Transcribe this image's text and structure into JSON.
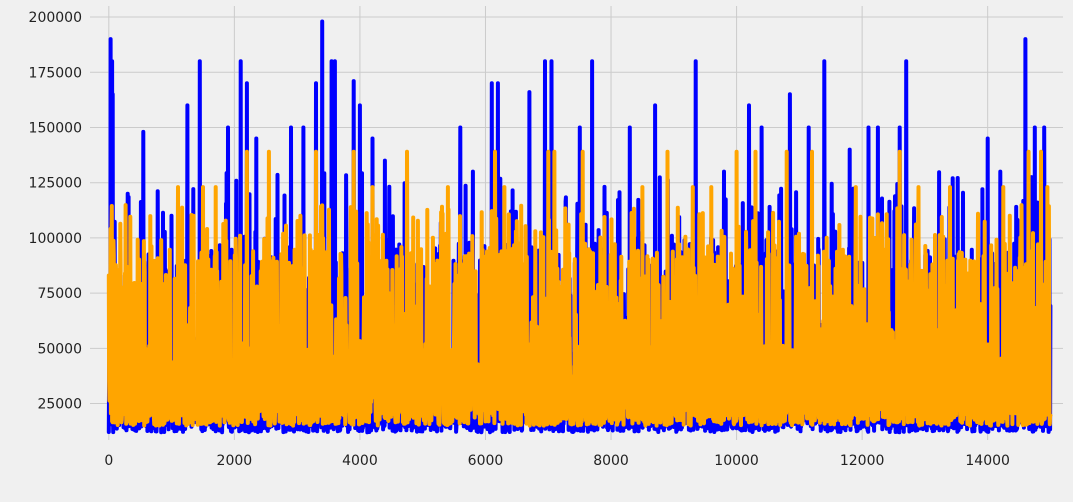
{
  "chart_data": {
    "type": "line",
    "title": "",
    "xlabel": "",
    "ylabel": "",
    "xlim": [
      -300,
      15200
    ],
    "ylim": [
      8500,
      205000
    ],
    "x_ticks": [
      0,
      2000,
      4000,
      6000,
      8000,
      10000,
      12000,
      14000
    ],
    "x_tick_labels": [
      "0",
      "2000",
      "4000",
      "6000",
      "8000",
      "10000",
      "12000",
      "14000"
    ],
    "y_ticks": [
      25000,
      50000,
      75000,
      100000,
      125000,
      150000,
      175000,
      200000
    ],
    "y_tick_labels": [
      "25000",
      "50000",
      "75000",
      "100000",
      "125000",
      "150000",
      "175000",
      "200000"
    ],
    "grid": true,
    "legend": "none",
    "background": "#f0f0f0",
    "grid_color": "#cbcbcb",
    "series": [
      {
        "color": "#0000ff",
        "n_points": 15000,
        "x_range": [
          0,
          14999
        ],
        "y_min": 12000,
        "y_max": 198000,
        "peaks": [
          [
            30,
            190000
          ],
          [
            50,
            180000
          ],
          [
            60,
            165000
          ],
          [
            300,
            120000
          ],
          [
            550,
            148000
          ],
          [
            1000,
            110000
          ],
          [
            1250,
            160000
          ],
          [
            1450,
            180000
          ],
          [
            1900,
            150000
          ],
          [
            2100,
            180000
          ],
          [
            2200,
            170000
          ],
          [
            2350,
            145000
          ],
          [
            2900,
            150000
          ],
          [
            3100,
            150000
          ],
          [
            3300,
            170000
          ],
          [
            3400,
            198000
          ],
          [
            3550,
            180000
          ],
          [
            3600,
            180000
          ],
          [
            3900,
            171000
          ],
          [
            4000,
            160000
          ],
          [
            4200,
            145000
          ],
          [
            4400,
            135000
          ],
          [
            5600,
            150000
          ],
          [
            5800,
            130000
          ],
          [
            6100,
            170000
          ],
          [
            6200,
            170000
          ],
          [
            6700,
            166000
          ],
          [
            6950,
            180000
          ],
          [
            7050,
            180000
          ],
          [
            7500,
            150000
          ],
          [
            7700,
            180000
          ],
          [
            8300,
            150000
          ],
          [
            8700,
            160000
          ],
          [
            9350,
            180000
          ],
          [
            9800,
            130000
          ],
          [
            10200,
            160000
          ],
          [
            10400,
            150000
          ],
          [
            10850,
            165000
          ],
          [
            11150,
            150000
          ],
          [
            11400,
            180000
          ],
          [
            11800,
            140000
          ],
          [
            12100,
            150000
          ],
          [
            12250,
            150000
          ],
          [
            12600,
            150000
          ],
          [
            12700,
            180000
          ],
          [
            14000,
            145000
          ],
          [
            14200,
            130000
          ],
          [
            14600,
            190000
          ],
          [
            14750,
            150000
          ],
          [
            14900,
            150000
          ]
        ]
      },
      {
        "color": "#ffa500",
        "n_points": 15000,
        "x_range": [
          0,
          14999
        ],
        "y_min": 15000,
        "y_max": 139000,
        "peaks": [
          [
            0,
            83000
          ],
          [
            40,
            101000
          ],
          [
            80,
            92000
          ],
          [
            500,
            71000
          ],
          [
            1100,
            123000
          ],
          [
            1350,
            110000
          ],
          [
            1500,
            123000
          ],
          [
            1700,
            123000
          ],
          [
            2200,
            139000
          ],
          [
            2550,
            139000
          ],
          [
            3050,
            110000
          ],
          [
            3300,
            139000
          ],
          [
            3900,
            139000
          ],
          [
            4200,
            123000
          ],
          [
            4750,
            139000
          ],
          [
            5400,
            123000
          ],
          [
            6150,
            139000
          ],
          [
            6300,
            123000
          ],
          [
            7000,
            139000
          ],
          [
            7100,
            139000
          ],
          [
            7550,
            139000
          ],
          [
            8500,
            123000
          ],
          [
            8900,
            139000
          ],
          [
            9300,
            123000
          ],
          [
            9600,
            123000
          ],
          [
            10000,
            139000
          ],
          [
            10300,
            139000
          ],
          [
            10800,
            139000
          ],
          [
            11200,
            139000
          ],
          [
            11900,
            123000
          ],
          [
            12600,
            139000
          ],
          [
            12900,
            123000
          ],
          [
            13400,
            123000
          ],
          [
            14250,
            123000
          ],
          [
            14350,
            110000
          ],
          [
            14650,
            139000
          ],
          [
            14850,
            139000
          ],
          [
            14950,
            123000
          ]
        ]
      }
    ]
  }
}
